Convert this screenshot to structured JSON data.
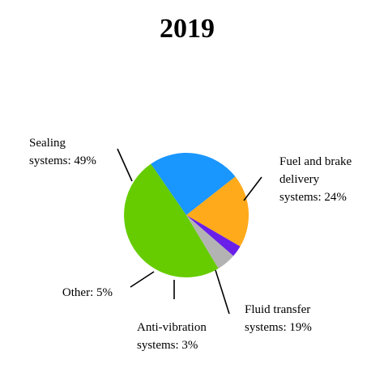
{
  "chart_data": {
    "type": "pie",
    "title": "2019",
    "slices": [
      {
        "name": "Sealing systems",
        "value": 49,
        "label": "Sealing systems: 49%",
        "label_lines": [
          "Sealing",
          "systems: 49%"
        ],
        "color": "#66cc00"
      },
      {
        "name": "Fuel and brake delivery systems",
        "value": 24,
        "label": "Fuel and brake delivery systems: 24%",
        "label_lines": [
          "Fuel and brake",
          "delivery",
          "systems: 24%"
        ],
        "color": "#1a96ff"
      },
      {
        "name": "Fluid transfer systems",
        "value": 19,
        "label": "Fluid transfer systems: 19%",
        "label_lines": [
          "Fluid transfer",
          "systems: 19%"
        ],
        "color": "#ffaa1a"
      },
      {
        "name": "Anti-vibration systems",
        "value": 3,
        "label": "Anti-vibration systems: 3%",
        "label_lines": [
          "Anti-vibration",
          "systems: 3%"
        ],
        "color": "#6a1fe8"
      },
      {
        "name": "Other",
        "value": 5,
        "label": "Other: 5%",
        "label_lines": [
          "Other: 5%"
        ],
        "color": "#b3b3b3"
      }
    ],
    "legend": "none",
    "labels": "outside with leader lines"
  }
}
